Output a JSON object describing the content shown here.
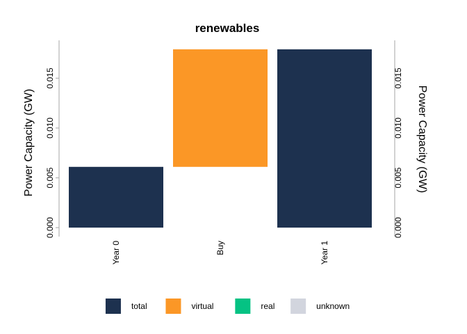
{
  "chart_data": {
    "type": "bar",
    "subtype": "waterfall",
    "title": "renewables",
    "categories": [
      "Year 0",
      "Buy",
      "Year 1"
    ],
    "bars": [
      {
        "category": "Year 0",
        "base": 0,
        "value": 0.0061,
        "type": "total"
      },
      {
        "category": "Buy",
        "base": 0.0061,
        "value": 0.0118,
        "type": "virtual"
      },
      {
        "category": "Year 1",
        "base": 0,
        "value": 0.0179,
        "type": "total"
      }
    ],
    "ylabel": "Power Capacity (GW)",
    "ylabel_right": "Power Capacity (GW)",
    "ylim": [
      -0.0009,
      0.0188
    ],
    "yticks": [
      "0.000",
      "0.005",
      "0.010",
      "0.015"
    ],
    "ytick_values": [
      0,
      0.005,
      0.01,
      0.015
    ],
    "legend": {
      "placement": "bottom",
      "entries": [
        {
          "label": "total",
          "color": "#1d314f"
        },
        {
          "label": "virtual",
          "color": "#fb9726"
        },
        {
          "label": "real",
          "color": "#05c283"
        },
        {
          "label": "unknown",
          "color": "#d2d5de"
        }
      ]
    },
    "colors": {
      "total": "#1d314f",
      "virtual": "#fb9726",
      "real": "#05c283",
      "unknown": "#d2d5de"
    },
    "grid": false
  }
}
